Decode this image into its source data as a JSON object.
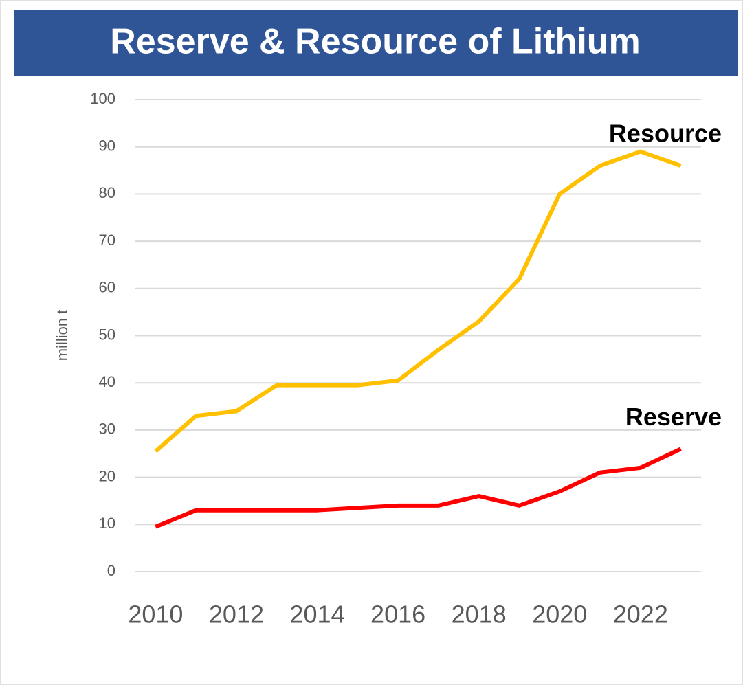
{
  "chart_data": {
    "type": "line",
    "title": "Reserve & Resource of Lithium",
    "ylabel": "million t",
    "x": [
      2010,
      2011,
      2012,
      2013,
      2014,
      2015,
      2016,
      2017,
      2018,
      2019,
      2020,
      2021,
      2022,
      2023
    ],
    "series": [
      {
        "name": "Resource",
        "color": "#ffc000",
        "values": [
          25.5,
          33,
          34,
          39.5,
          39.5,
          39.5,
          40.5,
          47,
          53,
          62,
          80,
          86,
          89,
          86
        ]
      },
      {
        "name": "Reserve",
        "color": "#ff0000",
        "values": [
          9.5,
          13,
          13,
          13,
          13,
          13.5,
          14,
          14,
          16,
          14,
          17,
          21,
          22,
          26
        ]
      }
    ],
    "xlim": [
      2009.5,
      2023.5
    ],
    "xticks": [
      2010,
      2012,
      2014,
      2016,
      2018,
      2020,
      2022
    ],
    "ylim": [
      0,
      100
    ],
    "yticks": [
      0,
      10,
      20,
      30,
      40,
      50,
      60,
      70,
      80,
      90,
      100
    ],
    "grid": true
  }
}
